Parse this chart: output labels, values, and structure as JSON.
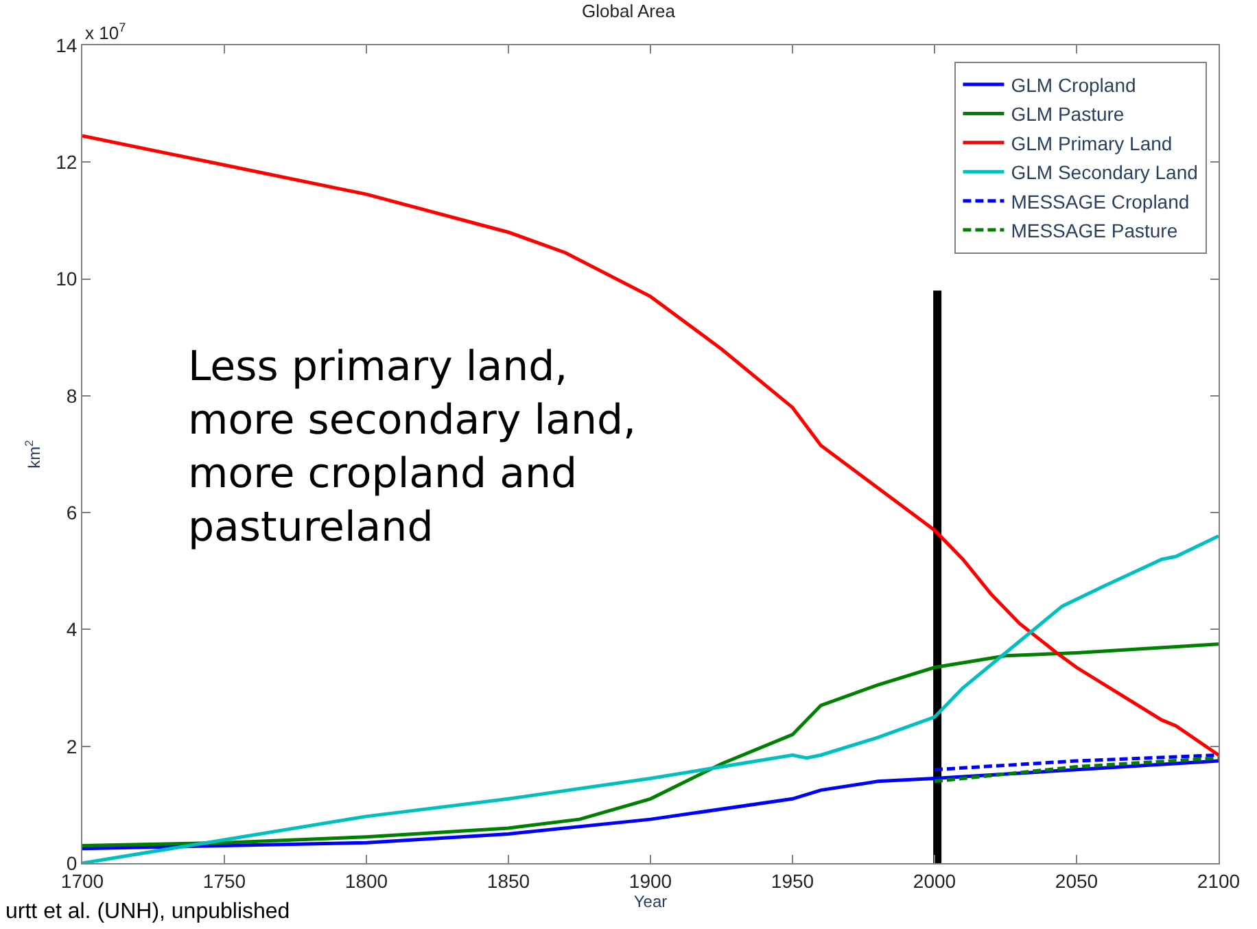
{
  "chart_data": {
    "type": "line",
    "title": "Global Area",
    "xlabel": "Year",
    "ylabel": "km$^{2}$",
    "annotations": [
      "x 10$^{7}$",
      "Less primary land,\nmore secondary land,\nmore cropland and\npastureland",
      "urtt et al. (UNH), unpublished"
    ],
    "series": [
      {
        "name": "GLM Cropland",
        "color": "#0000ff",
        "x": [
          1700,
          1750,
          1800,
          1850,
          1900,
          1950,
          1960,
          1980,
          2000,
          2050,
          2100
        ],
        "values": [
          0.25,
          0.3,
          0.35,
          0.5,
          0.75,
          1.1,
          1.25,
          1.4,
          1.45,
          1.6,
          1.75
        ]
      },
      {
        "name": "GLM Pasture",
        "color": "#008000",
        "x": [
          1700,
          1750,
          1800,
          1850,
          1875,
          1900,
          1925,
          1950,
          1960,
          1980,
          2000,
          2025,
          2050,
          2100
        ],
        "values": [
          0.3,
          0.35,
          0.45,
          0.6,
          0.75,
          1.1,
          1.7,
          2.2,
          2.7,
          3.05,
          3.35,
          3.55,
          3.6,
          3.75
        ]
      },
      {
        "name": "GLM Primary Land",
        "color": "#ff0000",
        "x": [
          1700,
          1750,
          1800,
          1850,
          1870,
          1900,
          1925,
          1950,
          1960,
          2000,
          2010,
          2020,
          2030,
          2043,
          2050,
          2080,
          2085,
          2100
        ],
        "values": [
          12.45,
          11.95,
          11.45,
          10.8,
          10.45,
          9.7,
          8.8,
          7.8,
          7.15,
          5.7,
          5.2,
          4.6,
          4.1,
          3.6,
          3.35,
          2.45,
          2.35,
          1.85
        ]
      },
      {
        "name": "GLM Secondary Land",
        "color": "#00bfbf",
        "x": [
          1700,
          1750,
          1800,
          1850,
          1900,
          1950,
          1955,
          1960,
          1980,
          2000,
          2010,
          2025,
          2040,
          2045,
          2060,
          2080,
          2085,
          2100
        ],
        "values": [
          0.0,
          0.4,
          0.8,
          1.1,
          1.45,
          1.85,
          1.8,
          1.85,
          2.15,
          2.5,
          3.0,
          3.6,
          4.2,
          4.4,
          4.75,
          5.2,
          5.25,
          5.6
        ]
      },
      {
        "name": "MESSAGE Cropland",
        "color": "#0000ff",
        "line_style": "dashed",
        "x": [
          2000,
          2050,
          2100
        ],
        "values": [
          1.6,
          1.75,
          1.85
        ]
      },
      {
        "name": "MESSAGE Pasture",
        "color": "#008000",
        "line_style": "dashed",
        "x": [
          2000,
          2050,
          2100
        ],
        "values": [
          1.4,
          1.65,
          1.8
        ]
      }
    ],
    "ref_lines": [
      {
        "axis": "x",
        "value": 2001,
        "color": "#000000"
      }
    ],
    "xlim": [
      1700,
      2100
    ],
    "xticks": [
      1700,
      1750,
      1800,
      1850,
      1900,
      1950,
      2000,
      2050,
      2100
    ],
    "ylim": [
      0,
      14
    ],
    "yticks": [
      0,
      2,
      4,
      6,
      8,
      10,
      12,
      14
    ],
    "legend": "top right",
    "line_style": "solid",
    "grid": false
  }
}
